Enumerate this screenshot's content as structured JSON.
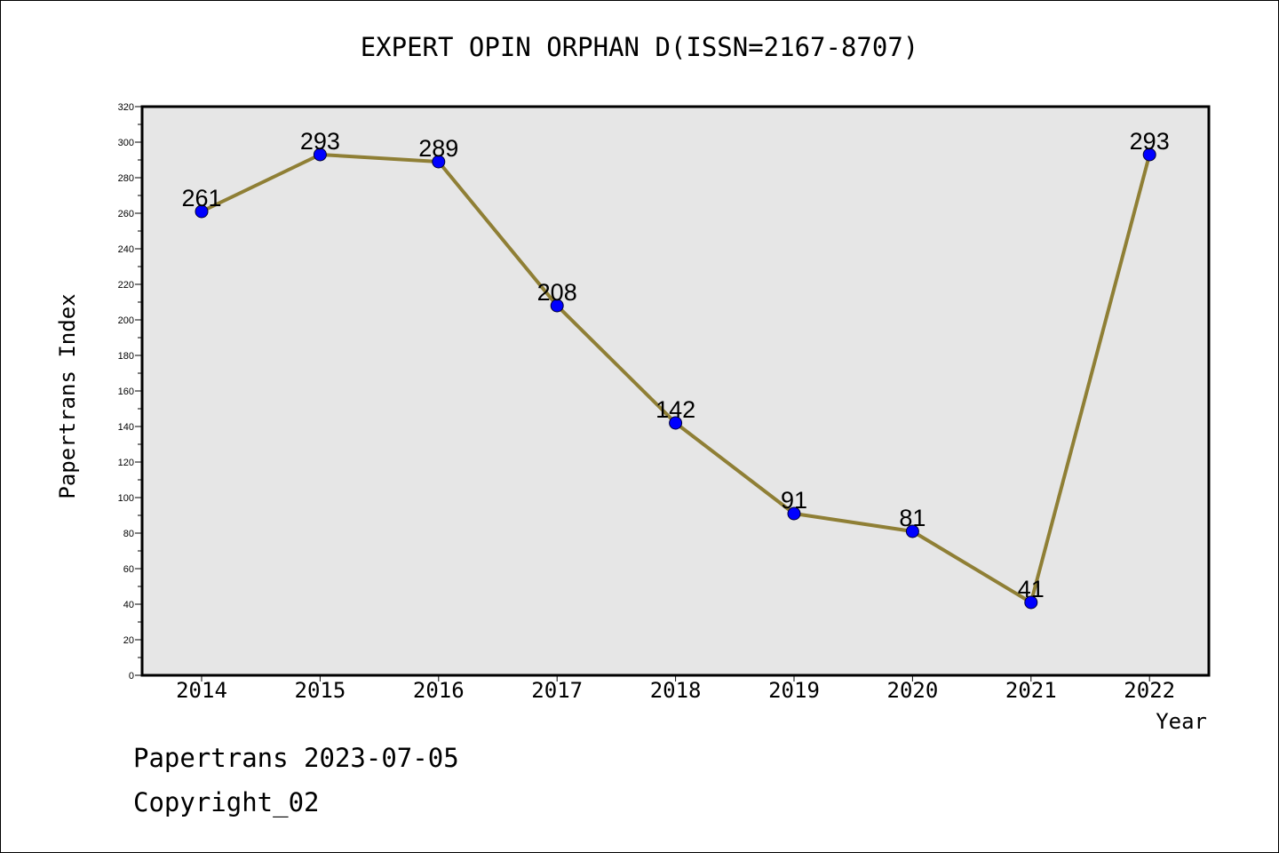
{
  "chart_data": {
    "type": "line",
    "title": "EXPERT OPIN ORPHAN D(ISSN=2167-8707)",
    "xlabel": "Year",
    "ylabel": "Papertrans Index",
    "categories": [
      "2014",
      "2015",
      "2016",
      "2017",
      "2018",
      "2019",
      "2020",
      "2021",
      "2022"
    ],
    "series": [
      {
        "values": [
          261,
          293,
          289,
          208,
          142,
          91,
          81,
          41,
          293
        ]
      }
    ],
    "ylim": [
      0,
      320
    ],
    "y_ticks": [
      0,
      20,
      40,
      60,
      80,
      100,
      120,
      140,
      160,
      180,
      200,
      220,
      240,
      260,
      280,
      300,
      320
    ],
    "grid": false,
    "data_labels": true,
    "colors": {
      "line": "#8f7f35",
      "marker": "#0000ff",
      "plot_background": "#e6e6e6"
    }
  },
  "footer": {
    "date_text": "Papertrans 2023-07-05",
    "copyright_text": "Copyright_02"
  }
}
